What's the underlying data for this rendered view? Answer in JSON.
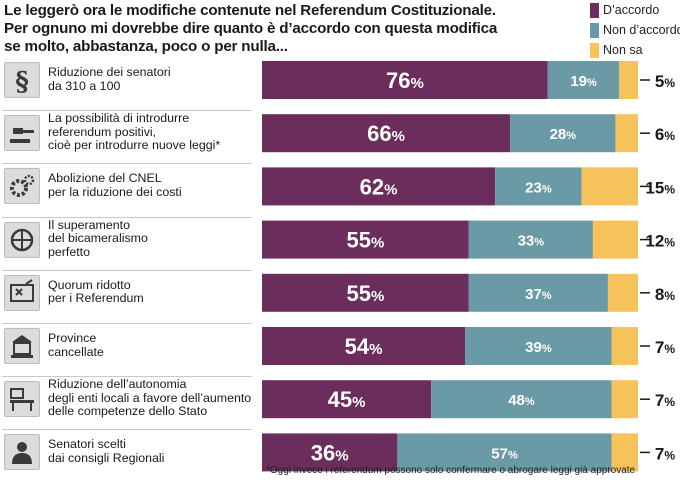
{
  "header": {
    "title_lines": [
      "Le leggerò ora le modifiche contenute nel Referendum Costituzionale.",
      "Per ognuno mi dovrebbe dire quanto è d’accordo con questa modifica",
      "se molto, abbastanza, poco o per nulla..."
    ]
  },
  "legend": [
    {
      "label": "D’accordo",
      "color": "#6b2d5b"
    },
    {
      "label": "Non d’accordo",
      "color": "#6a9aa5"
    },
    {
      "label": "Non sa",
      "color": "#f6c25a"
    }
  ],
  "footnote": "*Oggi invece i referendum possono solo confermare o abrogare leggi già approvate",
  "chart_data": {
    "type": "bar",
    "orientation": "horizontal",
    "stacked": true,
    "unit": "%",
    "categories": [
      [
        "Riduzione dei senatori",
        "da 310 a 100"
      ],
      [
        "La possibilità di introdurre",
        "referendum positivi,",
        "cioè per introdurre nuove leggi*"
      ],
      [
        "Abolizione del CNEL",
        "per la riduzione dei costi"
      ],
      [
        "Il superamento",
        "del bicameralismo",
        "perfetto"
      ],
      [
        "Quorum ridotto",
        "per i Referendum"
      ],
      [
        "Province",
        "cancellate"
      ],
      [
        "Riduzione dell’autonomia",
        "degli enti locali a favore dell’aumento",
        "delle competenze dello Stato"
      ],
      [
        "Senatori scelti",
        "dai consigli Regionali"
      ]
    ],
    "icons": [
      "senate-icon",
      "gavel-icon",
      "gears-icon",
      "parliament-icon",
      "ballot-icon",
      "building-icon",
      "desk-icon",
      "person-icon"
    ],
    "series": [
      {
        "name": "D’accordo",
        "values": [
          76,
          66,
          62,
          55,
          55,
          54,
          45,
          36
        ]
      },
      {
        "name": "Non d’accordo",
        "values": [
          19,
          28,
          23,
          33,
          37,
          39,
          48,
          57
        ]
      },
      {
        "name": "Non sa",
        "values": [
          5,
          6,
          15,
          12,
          8,
          7,
          7,
          7
        ]
      }
    ],
    "xlim": [
      0,
      100
    ]
  }
}
